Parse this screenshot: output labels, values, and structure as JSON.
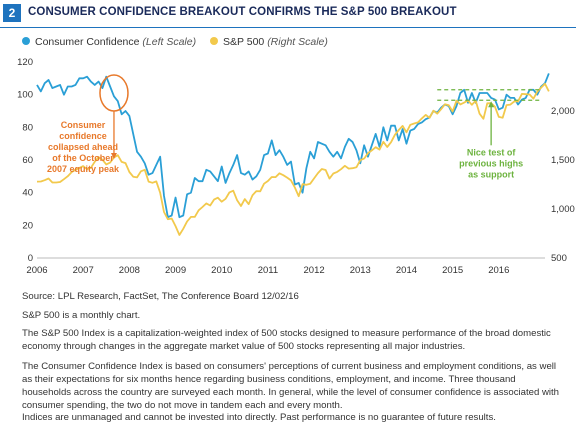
{
  "header": {
    "badge": "2",
    "title": "CONSUMER CONFIDENCE BREAKOUT CONFIRMS THE S&P 500 BREAKOUT"
  },
  "legend": [
    {
      "name": "Consumer Confidence",
      "scale": "(Left Scale)",
      "color": "#2a9fd6"
    },
    {
      "name": "S&P 500",
      "scale": "(Right Scale)",
      "color": "#f2c94c"
    }
  ],
  "chart_data": {
    "type": "line",
    "x_start_year": 2006,
    "x_step_months": 1,
    "left_axis": {
      "min": 0,
      "max": 120,
      "ticks": [
        "0",
        "20",
        "40",
        "60",
        "80",
        "100",
        "120"
      ]
    },
    "right_axis": {
      "min": 500,
      "max": 2500,
      "ticks": [
        "500",
        "1,000",
        "1,500",
        "2,000"
      ]
    },
    "x_ticks": [
      "2006",
      "2007",
      "2008",
      "2009",
      "2010",
      "2011",
      "2012",
      "2013",
      "2014",
      "2015",
      "2016"
    ],
    "series": [
      {
        "name": "Consumer Confidence",
        "axis": "left",
        "color": "#2a9fd6",
        "values": [
          106,
          102,
          107,
          109,
          104,
          105,
          106,
          100,
          105,
          105,
          106,
          110,
          110,
          111,
          108,
          106,
          108,
          104,
          111,
          105,
          99,
          96,
          88,
          90,
          87,
          76,
          65,
          62,
          58,
          51,
          52,
          57,
          62,
          38,
          25,
          26,
          37,
          25,
          26,
          39,
          40,
          49,
          47,
          47,
          54,
          53,
          50,
          47,
          56,
          46,
          52,
          57,
          63,
          52,
          51,
          53,
          48,
          50,
          54,
          63,
          64,
          72,
          63,
          66,
          62,
          57,
          59,
          45,
          46,
          40,
          55,
          65,
          61,
          71,
          70,
          69,
          65,
          62,
          65,
          61,
          68,
          73,
          71,
          66,
          58,
          69,
          62,
          69,
          76,
          68,
          80,
          72,
          81,
          81,
          72,
          79,
          70,
          78,
          79,
          82,
          83,
          85,
          86,
          90,
          89,
          92,
          94,
          93,
          88,
          93,
          101,
          103,
          95,
          101,
          95,
          101,
          101,
          101,
          98,
          97,
          91,
          92,
          100,
          98,
          98,
          94,
          97,
          98,
          103,
          103,
          100,
          105,
          107,
          113
        ]
      },
      {
        "name": "S&P 500",
        "axis": "right",
        "color": "#f2c94c",
        "values": [
          1280,
          1281,
          1294,
          1311,
          1270,
          1270,
          1276,
          1304,
          1335,
          1377,
          1400,
          1418,
          1438,
          1406,
          1420,
          1482,
          1530,
          1503,
          1455,
          1473,
          1526,
          1549,
          1481,
          1468,
          1378,
          1330,
          1322,
          1385,
          1400,
          1280,
          1267,
          1282,
          1166,
          969,
          896,
          903,
          826,
          735,
          798,
          873,
          919,
          919,
          987,
          1020,
          1057,
          1036,
          1096,
          1115,
          1074,
          1104,
          1169,
          1187,
          1089,
          1031,
          1101,
          1049,
          1141,
          1183,
          1181,
          1258,
          1286,
          1327,
          1326,
          1364,
          1345,
          1320,
          1292,
          1219,
          1131,
          1253,
          1247,
          1258,
          1312,
          1366,
          1408,
          1398,
          1310,
          1362,
          1379,
          1406,
          1441,
          1412,
          1416,
          1426,
          1498,
          1514,
          1569,
          1598,
          1631,
          1606,
          1686,
          1633,
          1682,
          1757,
          1806,
          1848,
          1783,
          1859,
          1872,
          1884,
          1924,
          1960,
          1931,
          2003,
          1972,
          2018,
          2068,
          2059,
          1995,
          2105,
          2067,
          2086,
          2107,
          2063,
          2104,
          1972,
          1920,
          2079,
          2080,
          2043,
          1940,
          1932,
          2060,
          2065,
          2097,
          2099,
          2174,
          2171,
          2168,
          2126,
          2198,
          2239,
          2278,
          2200
        ]
      }
    ],
    "annotations": [
      {
        "text": [
          "Consumer",
          "confidence",
          "collapsed ahead",
          "of the October",
          "2007 equity peak"
        ],
        "color": "#e8792b"
      },
      {
        "text": [
          "Nice test of",
          "previous highs",
          "as support"
        ],
        "color": "#6db33f"
      }
    ]
  },
  "notes": {
    "source": "Source: LPL Research, FactSet, The Conference Board  12/02/16",
    "monthly": "S&P 500 is a monthly chart.",
    "sp_def": "The S&P 500 Index is a capitalization-weighted index of 500 stocks designed to measure performance of the broad domestic economy through changes in the aggregate market value of 500 stocks representing all major industries.",
    "cci_def": "The Consumer Confidence Index is based on consumers' perceptions of current business and employment conditions, as well as their expectations for six months hence regarding business conditions, employment, and income. Three thousand households across the country are surveyed each month. In general, while the level of consumer confidence is associated with consumer spending, the two do not move in tandem each and every month.",
    "disclaimer": "Indices are unmanaged and cannot be invested into directly. Past performance is no guarantee of future results."
  }
}
